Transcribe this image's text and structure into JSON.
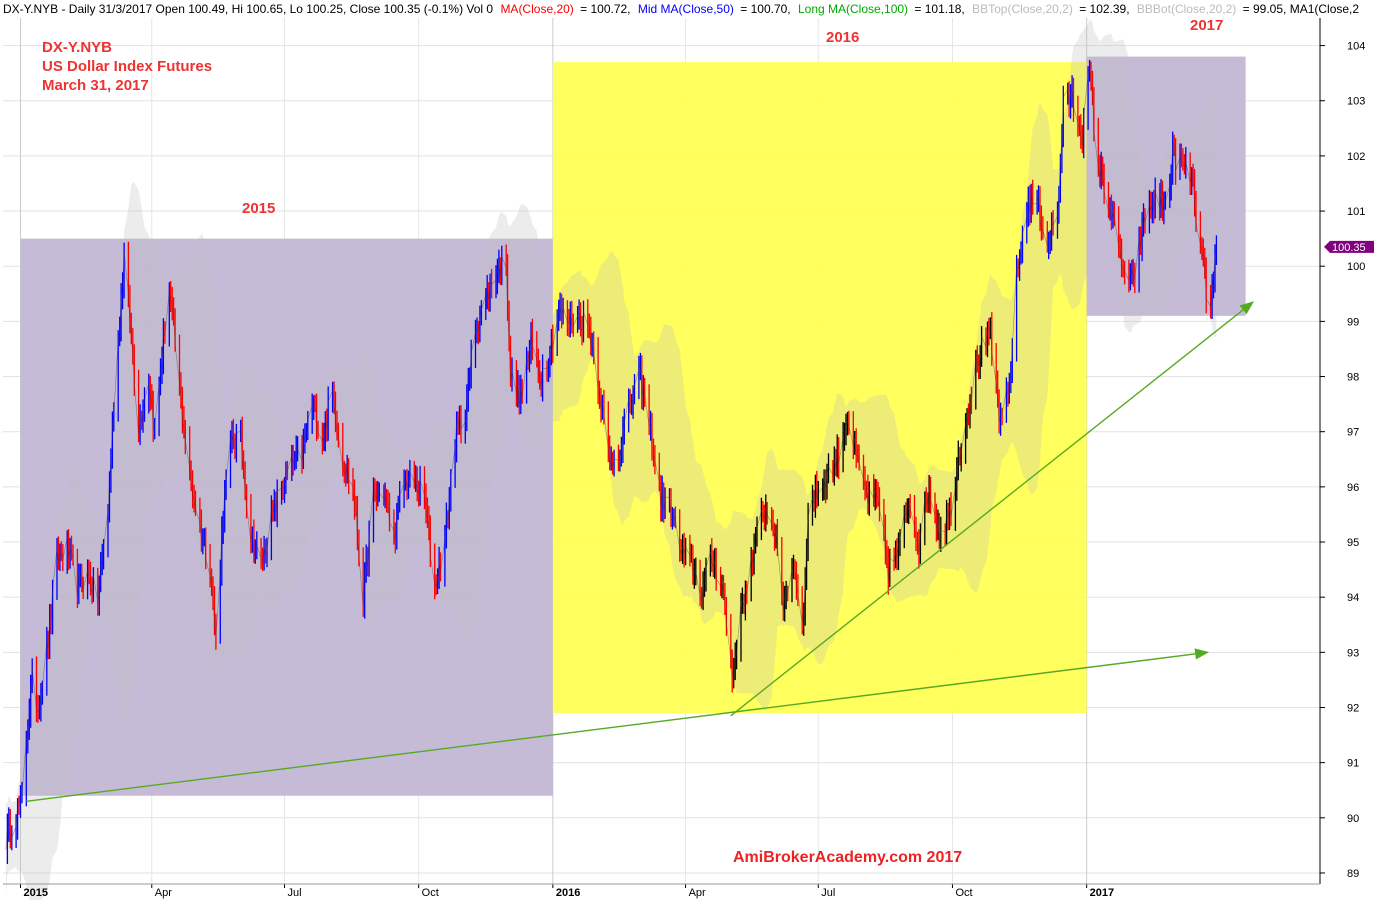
{
  "info_bar": {
    "symbol_text": "DX-Y.NYB - Daily 31/3/2017 Open 100.49, Hi 100.65, Lo 100.25, Close 100.35 (-0.1%) Vol 0",
    "ma20_text": "MA(Close,20)",
    "ma20_value": "= 100.72,",
    "ma50_text": "Mid MA(Close,50)",
    "ma50_value": "= 100.70,",
    "ma100_text": "Long MA(Close,100)",
    "ma100_value": "= 101.18,",
    "bbtop_text": "BBTop(Close,20,2)",
    "bbtop_value": "= 102.39,",
    "bbbot_text": "BBBot(Close,20,2)",
    "bbbot_value": "= 99.05, MA1(Close,2",
    "colors": {
      "ma20": "#ff0000",
      "ma50": "#0000ff",
      "ma100": "#00aa00",
      "bb": "#bbbbbb",
      "default": "#000000"
    }
  },
  "chart_data": {
    "type": "line",
    "title": "DX-Y.NYB",
    "subtitle_lines": [
      "US Dollar Index Futures",
      "March 31, 2017"
    ],
    "watermark": "AmiBrokerAcademy.com 2017",
    "ylim": [
      88.8,
      104.5
    ],
    "xlim": [
      "2014-12-20",
      "2017-06-10"
    ],
    "y_ticks": [
      89,
      90,
      91,
      92,
      93,
      94,
      95,
      96,
      97,
      98,
      99,
      100,
      101,
      102,
      103,
      104
    ],
    "x_ticks": [
      {
        "date": "2015-01-01",
        "label": "2015",
        "bold": true
      },
      {
        "date": "2015-04-01",
        "label": "Apr",
        "bold": false
      },
      {
        "date": "2015-07-01",
        "label": "Jul",
        "bold": false
      },
      {
        "date": "2015-10-01",
        "label": "Oct",
        "bold": false
      },
      {
        "date": "2016-01-01",
        "label": "2016",
        "bold": true
      },
      {
        "date": "2016-04-01",
        "label": "Apr",
        "bold": false
      },
      {
        "date": "2016-07-01",
        "label": "Jul",
        "bold": false
      },
      {
        "date": "2016-10-01",
        "label": "Oct",
        "bold": false
      },
      {
        "date": "2017-01-01",
        "label": "2017",
        "bold": true
      }
    ],
    "last_price_label": "100.35",
    "last_price": 100.35,
    "colors": {
      "up": "#0000ff",
      "down": "#ff0000",
      "neutral": "#000000",
      "region_2015": "#c8bcd8",
      "region_2016": "#ffff55",
      "region_2017": "#c8bcd8",
      "trendline": "#55aa22",
      "band": "#bbbbbb"
    },
    "regions": [
      {
        "label": "2015",
        "x_start": "2015-01-01",
        "x_end": "2016-01-01",
        "y_low": 90.4,
        "y_high": 100.5,
        "color": "#c3b7d5"
      },
      {
        "label": "2016",
        "x_start": "2016-01-01",
        "x_end": "2017-01-01",
        "y_low": 91.9,
        "y_high": 103.7,
        "color": "#ffff55"
      },
      {
        "label": "2017",
        "x_start": "2017-01-01",
        "x_end": "2017-04-20",
        "y_low": 99.1,
        "y_high": 103.8,
        "color": "#c3b7d5"
      }
    ],
    "trendlines": [
      {
        "from": [
          "2015-01-05",
          90.3
        ],
        "to": [
          "2017-03-25",
          93.0
        ]
      },
      {
        "from": [
          "2016-05-02",
          91.85
        ],
        "to": [
          "2017-04-25",
          99.35
        ]
      }
    ],
    "series": [
      {
        "name": "Close",
        "points": [
          [
            "2014-12-22",
            89.6
          ],
          [
            "2015-01-02",
            90.3
          ],
          [
            "2015-01-05",
            91.5
          ],
          [
            "2015-01-09",
            92.5
          ],
          [
            "2015-01-13",
            92.0
          ],
          [
            "2015-01-20",
            93.2
          ],
          [
            "2015-01-26",
            94.7
          ],
          [
            "2015-02-02",
            94.9
          ],
          [
            "2015-02-09",
            94.2
          ],
          [
            "2015-02-16",
            94.4
          ],
          [
            "2015-02-23",
            94.0
          ],
          [
            "2015-03-02",
            95.6
          ],
          [
            "2015-03-06",
            97.5
          ],
          [
            "2015-03-13",
            100.2
          ],
          [
            "2015-03-18",
            98.7
          ],
          [
            "2015-03-23",
            97.1
          ],
          [
            "2015-03-30",
            98.0
          ],
          [
            "2015-04-03",
            97.0
          ],
          [
            "2015-04-08",
            98.4
          ],
          [
            "2015-04-13",
            99.6
          ],
          [
            "2015-04-20",
            97.8
          ],
          [
            "2015-04-27",
            96.2
          ],
          [
            "2015-05-04",
            95.3
          ],
          [
            "2015-05-11",
            94.6
          ],
          [
            "2015-05-15",
            93.2
          ],
          [
            "2015-05-20",
            95.6
          ],
          [
            "2015-05-26",
            96.9
          ],
          [
            "2015-06-01",
            96.8
          ],
          [
            "2015-06-08",
            95.1
          ],
          [
            "2015-06-15",
            94.6
          ],
          [
            "2015-06-22",
            95.4
          ],
          [
            "2015-06-29",
            96.0
          ],
          [
            "2015-07-06",
            96.4
          ],
          [
            "2015-07-13",
            96.6
          ],
          [
            "2015-07-20",
            97.5
          ],
          [
            "2015-07-27",
            96.9
          ],
          [
            "2015-08-03",
            97.7
          ],
          [
            "2015-08-10",
            96.5
          ],
          [
            "2015-08-17",
            96.0
          ],
          [
            "2015-08-24",
            94.0
          ],
          [
            "2015-08-31",
            95.8
          ],
          [
            "2015-09-07",
            95.9
          ],
          [
            "2015-09-14",
            95.1
          ],
          [
            "2015-09-21",
            96.1
          ],
          [
            "2015-09-28",
            96.1
          ],
          [
            "2015-10-05",
            95.8
          ],
          [
            "2015-10-12",
            94.2
          ],
          [
            "2015-10-19",
            95.0
          ],
          [
            "2015-10-26",
            96.9
          ],
          [
            "2015-11-02",
            97.4
          ],
          [
            "2015-11-09",
            98.9
          ],
          [
            "2015-11-16",
            99.4
          ],
          [
            "2015-11-23",
            99.9
          ],
          [
            "2015-11-30",
            100.1
          ],
          [
            "2015-12-03",
            98.0
          ],
          [
            "2015-12-10",
            97.6
          ],
          [
            "2015-12-17",
            98.6
          ],
          [
            "2015-12-24",
            98.0
          ],
          [
            "2015-12-31",
            98.6
          ],
          [
            "2016-01-05",
            99.2
          ],
          [
            "2016-01-12",
            99.0
          ],
          [
            "2016-01-19",
            99.1
          ],
          [
            "2016-01-26",
            98.9
          ],
          [
            "2016-02-02",
            97.8
          ],
          [
            "2016-02-09",
            96.4
          ],
          [
            "2016-02-16",
            96.7
          ],
          [
            "2016-02-23",
            97.5
          ],
          [
            "2016-03-01",
            98.0
          ],
          [
            "2016-03-08",
            97.0
          ],
          [
            "2016-03-15",
            95.8
          ],
          [
            "2016-03-22",
            95.6
          ],
          [
            "2016-03-29",
            94.8
          ],
          [
            "2016-04-05",
            94.6
          ],
          [
            "2016-04-12",
            94.1
          ],
          [
            "2016-04-19",
            94.7
          ],
          [
            "2016-04-26",
            94.3
          ],
          [
            "2016-05-03",
            92.6
          ],
          [
            "2016-05-10",
            93.9
          ],
          [
            "2016-05-17",
            94.7
          ],
          [
            "2016-05-24",
            95.6
          ],
          [
            "2016-05-31",
            95.4
          ],
          [
            "2016-06-07",
            93.9
          ],
          [
            "2016-06-14",
            94.6
          ],
          [
            "2016-06-21",
            93.6
          ],
          [
            "2016-06-24",
            95.6
          ],
          [
            "2016-06-30",
            95.9
          ],
          [
            "2016-07-07",
            96.2
          ],
          [
            "2016-07-14",
            96.5
          ],
          [
            "2016-07-21",
            97.3
          ],
          [
            "2016-07-28",
            96.4
          ],
          [
            "2016-08-04",
            95.8
          ],
          [
            "2016-08-11",
            95.7
          ],
          [
            "2016-08-18",
            94.5
          ],
          [
            "2016-08-25",
            94.8
          ],
          [
            "2016-09-01",
            95.8
          ],
          [
            "2016-09-08",
            95.0
          ],
          [
            "2016-09-15",
            96.0
          ],
          [
            "2016-09-22",
            95.2
          ],
          [
            "2016-09-29",
            95.5
          ],
          [
            "2016-10-06",
            96.7
          ],
          [
            "2016-10-13",
            97.6
          ],
          [
            "2016-10-20",
            98.5
          ],
          [
            "2016-10-27",
            98.7
          ],
          [
            "2016-11-03",
            97.1
          ],
          [
            "2016-11-09",
            97.8
          ],
          [
            "2016-11-14",
            99.8
          ],
          [
            "2016-11-21",
            101.1
          ],
          [
            "2016-11-28",
            101.2
          ],
          [
            "2016-12-05",
            100.4
          ],
          [
            "2016-12-12",
            100.9
          ],
          [
            "2016-12-16",
            102.9
          ],
          [
            "2016-12-22",
            103.1
          ],
          [
            "2016-12-29",
            102.4
          ],
          [
            "2017-01-03",
            103.5
          ],
          [
            "2017-01-09",
            101.8
          ],
          [
            "2017-01-16",
            101.2
          ],
          [
            "2017-01-23",
            100.3
          ],
          [
            "2017-01-30",
            99.6
          ],
          [
            "2017-02-03",
            99.9
          ],
          [
            "2017-02-10",
            100.9
          ],
          [
            "2017-02-17",
            101.2
          ],
          [
            "2017-02-24",
            101.1
          ],
          [
            "2017-03-01",
            102.0
          ],
          [
            "2017-03-08",
            101.8
          ],
          [
            "2017-03-14",
            101.6
          ],
          [
            "2017-03-20",
            100.3
          ],
          [
            "2017-03-24",
            99.6
          ],
          [
            "2017-03-27",
            99.2
          ],
          [
            "2017-03-31",
            100.35
          ]
        ]
      }
    ]
  }
}
